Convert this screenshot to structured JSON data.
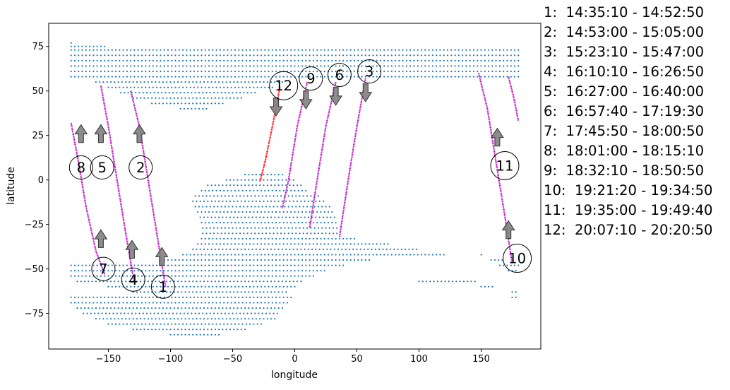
{
  "chart_data": {
    "type": "scatter",
    "title": "",
    "xlabel": "longitude",
    "ylabel": "latitude",
    "xlim": [
      -198,
      198
    ],
    "ylim": [
      -95,
      88
    ],
    "xticks": [
      -150,
      -100,
      -50,
      0,
      50,
      100,
      150
    ],
    "yticks": [
      -75,
      -50,
      -25,
      0,
      25,
      50,
      75
    ],
    "xtick_labels": [
      "−150",
      "−100",
      "−50",
      "0",
      "50",
      "100",
      "150"
    ],
    "ytick_labels": [
      "−75",
      "−50",
      "−25",
      "0",
      "25",
      "50",
      "75"
    ],
    "grid": false,
    "land_color": "#1f77b4",
    "track_color": "#c000c0",
    "highlight_track_color": "#ff0000",
    "arrow_color": "#808080",
    "land_regions": [
      {
        "name": "north",
        "bands": [
          [
            77,
            -180,
            -180
          ],
          [
            75,
            -180,
            -152
          ],
          [
            73,
            -180,
            180
          ],
          [
            70,
            -180,
            180
          ],
          [
            67,
            -180,
            180
          ],
          [
            64,
            -180,
            180
          ],
          [
            61,
            -180,
            180
          ],
          [
            58,
            -180,
            180
          ],
          [
            55,
            -160,
            -8
          ],
          [
            52,
            -150,
            -18
          ],
          [
            49,
            -140,
            -30
          ],
          [
            46,
            -130,
            -42
          ],
          [
            43,
            -115,
            -58
          ],
          [
            40,
            -92,
            -70
          ]
        ]
      },
      {
        "name": "south",
        "bands": [
          [
            3,
            -40,
            -8
          ],
          [
            0,
            -55,
            0
          ],
          [
            -3,
            -70,
            5
          ],
          [
            -6,
            -75,
            10
          ],
          [
            -9,
            -80,
            20
          ],
          [
            -12,
            -82,
            25
          ],
          [
            -15,
            -80,
            28
          ],
          [
            -18,
            -78,
            30
          ],
          [
            -21,
            -76,
            32
          ],
          [
            -24,
            -75,
            33
          ],
          [
            -27,
            -74,
            34
          ],
          [
            -30,
            -74,
            35
          ],
          [
            -33,
            -75,
            50
          ],
          [
            -36,
            -78,
            75
          ],
          [
            -39,
            -82,
            100
          ],
          [
            -42,
            -90,
            120
          ],
          [
            -45,
            -105,
            60
          ],
          [
            -48,
            -180,
            40
          ],
          [
            -51,
            -180,
            25
          ],
          [
            -54,
            -180,
            15
          ],
          [
            -57,
            -175,
            5
          ],
          [
            -60,
            -150,
            0
          ],
          [
            -63,
            -130,
            -5
          ],
          [
            -66,
            -180,
            -3
          ],
          [
            -69,
            -180,
            -5
          ],
          [
            -72,
            -175,
            -8
          ],
          [
            -75,
            -170,
            -12
          ],
          [
            -78,
            -160,
            -15
          ],
          [
            -81,
            -150,
            -25
          ],
          [
            -84,
            -130,
            -40
          ],
          [
            -87,
            -100,
            -60
          ]
        ]
      },
      {
        "name": "south-east",
        "bands": [
          [
            -42,
            150,
            150
          ],
          [
            -45,
            158,
            168
          ],
          [
            -48,
            165,
            180
          ],
          [
            -51,
            172,
            180
          ],
          [
            -63,
            175,
            180
          ],
          [
            -66,
            175,
            180
          ]
        ]
      },
      {
        "name": "south-east-coast",
        "bands": [
          [
            -57,
            100,
            145
          ],
          [
            -60,
            150,
            160
          ]
        ]
      }
    ],
    "passes": [
      {
        "id": "1",
        "label": "1:  14:35:10 - 14:52:50",
        "highlight": false,
        "track": [
          [
            -132,
            50
          ],
          [
            -125,
            30
          ],
          [
            -118,
            0
          ],
          [
            -111,
            -30
          ],
          [
            -104,
            -60
          ]
        ],
        "circle": [
          -106,
          -60
        ],
        "arrow": {
          "x": -107,
          "from": -48,
          "to": -38
        }
      },
      {
        "id": "2",
        "label": "2:  14:53:00 - 15:05:00",
        "highlight": false,
        "track": [
          [
            -132,
            50
          ],
          [
            -125,
            30
          ],
          [
            -118,
            0
          ],
          [
            -111,
            -30
          ],
          [
            -104,
            -60
          ]
        ],
        "circle": [
          -124,
          7
        ],
        "arrow": {
          "x": -125,
          "from": 21,
          "to": 31
        }
      },
      {
        "id": "3",
        "label": "3:  15:23:10 - 15:47:00",
        "highlight": false,
        "track": [
          [
            57,
            57
          ],
          [
            50,
            30
          ],
          [
            43,
            0
          ],
          [
            36,
            -32
          ]
        ],
        "circle": [
          60,
          61
        ],
        "arrow": {
          "x": 57,
          "from": 54,
          "to": 44
        }
      },
      {
        "id": "4",
        "label": "4:  16:10:10 - 16:26:50",
        "highlight": false,
        "track": [
          [
            -156,
            53
          ],
          [
            -150,
            30
          ],
          [
            -143,
            0
          ],
          [
            -136,
            -30
          ],
          [
            -129,
            -58
          ]
        ],
        "circle": [
          -130,
          -56
        ],
        "arrow": {
          "x": -131,
          "from": -44,
          "to": -34
        }
      },
      {
        "id": "5",
        "label": "5:  16:27:00 - 16:40:00",
        "highlight": false,
        "track": [
          [
            -156,
            53
          ],
          [
            -150,
            30
          ],
          [
            -143,
            0
          ],
          [
            -136,
            -30
          ],
          [
            -129,
            -58
          ]
        ],
        "circle": [
          -155,
          7
        ],
        "arrow": {
          "x": -156,
          "from": 21,
          "to": 31
        }
      },
      {
        "id": "6",
        "label": "6:  16:57:40 - 17:19:30",
        "highlight": false,
        "track": [
          [
            33,
            55
          ],
          [
            25,
            30
          ],
          [
            18,
            0
          ],
          [
            12,
            -27
          ]
        ],
        "circle": [
          36,
          59
        ],
        "arrow": {
          "x": 33,
          "from": 52,
          "to": 42
        }
      },
      {
        "id": "7",
        "label": "7:  17:45:50 - 18:00:50",
        "highlight": false,
        "track": [
          [
            -180,
            32
          ],
          [
            -174,
            10
          ],
          [
            -168,
            -15
          ],
          [
            -160,
            -40
          ],
          [
            -153,
            -53
          ]
        ],
        "circle": [
          -154,
          -50
        ],
        "arrow": {
          "x": -156,
          "from": -38,
          "to": -28
        }
      },
      {
        "id": "8",
        "label": "8:  18:01:00 - 18:15:10",
        "highlight": false,
        "track": [
          [
            -180,
            32
          ],
          [
            -174,
            10
          ],
          [
            -168,
            -15
          ],
          [
            -160,
            -40
          ],
          [
            -153,
            -53
          ]
        ],
        "circle": [
          -172,
          7
        ],
        "arrow": {
          "x": -172,
          "from": 21,
          "to": 31
        }
      },
      {
        "id": "9",
        "label": "9:  18:32:10 - 18:50:50",
        "highlight": false,
        "track": [
          [
            10,
            55
          ],
          [
            2,
            30
          ],
          [
            -5,
            0
          ],
          [
            -10,
            -16
          ]
        ],
        "circle": [
          13,
          57
        ],
        "arrow": {
          "x": 9,
          "from": 50,
          "to": 40
        }
      },
      {
        "id": "10",
        "label": "10:  19:21:20 - 19:34:50",
        "highlight": false,
        "track": [
          [
            148,
            60
          ],
          [
            155,
            40
          ],
          [
            162,
            10
          ],
          [
            169,
            -20
          ],
          [
            175,
            -47
          ]
        ],
        "circle": [
          179,
          -44
        ],
        "arrow": {
          "x": 172,
          "from": -33,
          "to": -23
        }
      },
      {
        "id": "11",
        "label": "11:  19:35:00 - 19:49:40",
        "highlight": false,
        "track": [
          [
            172,
            58
          ],
          [
            176,
            47
          ],
          [
            180,
            33
          ]
        ],
        "circle": [
          169,
          8
        ],
        "arrow": {
          "x": 163,
          "from": 19,
          "to": 29
        }
      },
      {
        "id": "12",
        "label": "12:  20:07:10 - 20:20:50",
        "highlight": true,
        "track": [
          [
            -12,
            52
          ],
          [
            -18,
            30
          ],
          [
            -24,
            10
          ],
          [
            -28,
            -1
          ]
        ],
        "circle": [
          -9,
          53
        ],
        "arrow": {
          "x": -15,
          "from": 46,
          "to": 36
        }
      }
    ]
  }
}
